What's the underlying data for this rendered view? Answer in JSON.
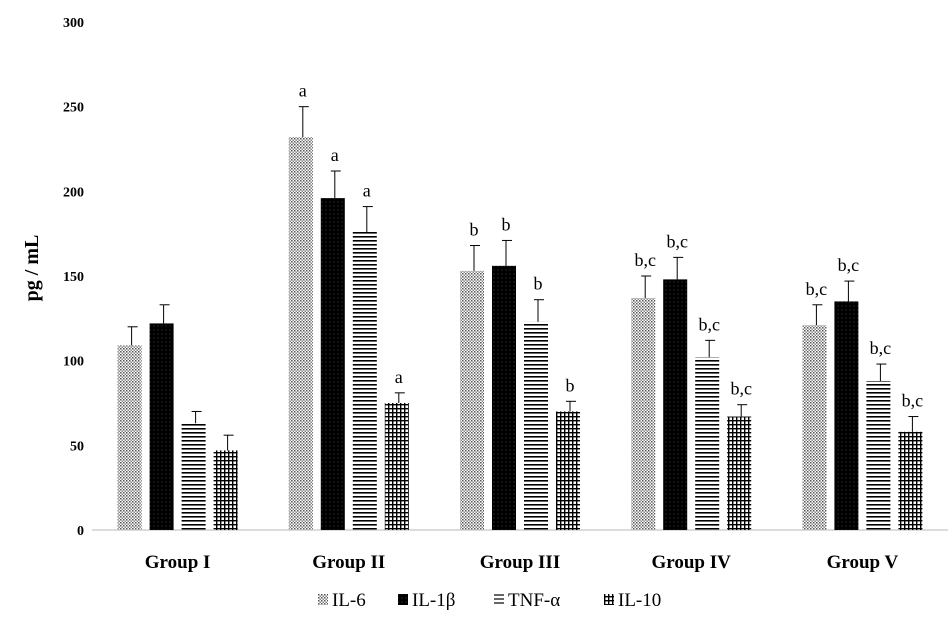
{
  "chart_data": {
    "type": "bar",
    "categories": [
      "Group I",
      "Group II",
      "Group III",
      "Group IV",
      "Group V"
    ],
    "ylabel": "pg / mL",
    "ylim": [
      0,
      300
    ],
    "yticks": [
      0,
      50,
      100,
      150,
      200,
      250,
      300
    ],
    "grid": false,
    "legend_position": "bottom",
    "series": [
      {
        "name": "IL-6",
        "values": [
          109,
          232,
          153,
          137,
          121
        ],
        "errors": [
          11,
          18,
          15,
          13,
          12
        ],
        "labels": [
          "",
          "a",
          "b",
          "b,c",
          "b,c"
        ],
        "pattern": "dots"
      },
      {
        "name": "IL-1β",
        "values": [
          122,
          196,
          156,
          148,
          135
        ],
        "errors": [
          11,
          16,
          15,
          13,
          12
        ],
        "labels": [
          "",
          "a",
          "b",
          "b,c",
          "b,c"
        ],
        "pattern": "solid"
      },
      {
        "name": "TNF-α",
        "values": [
          63,
          176,
          123,
          102,
          88
        ],
        "errors": [
          7,
          15,
          13,
          10,
          10
        ],
        "labels": [
          "",
          "a",
          "b",
          "b,c",
          "b,c"
        ],
        "pattern": "hlines"
      },
      {
        "name": "IL-10",
        "values": [
          47,
          75,
          70,
          67,
          58
        ],
        "errors": [
          9,
          6,
          6,
          7,
          9
        ],
        "labels": [
          "",
          "a",
          "b",
          "b,c",
          "b,c"
        ],
        "pattern": "grid"
      }
    ]
  }
}
